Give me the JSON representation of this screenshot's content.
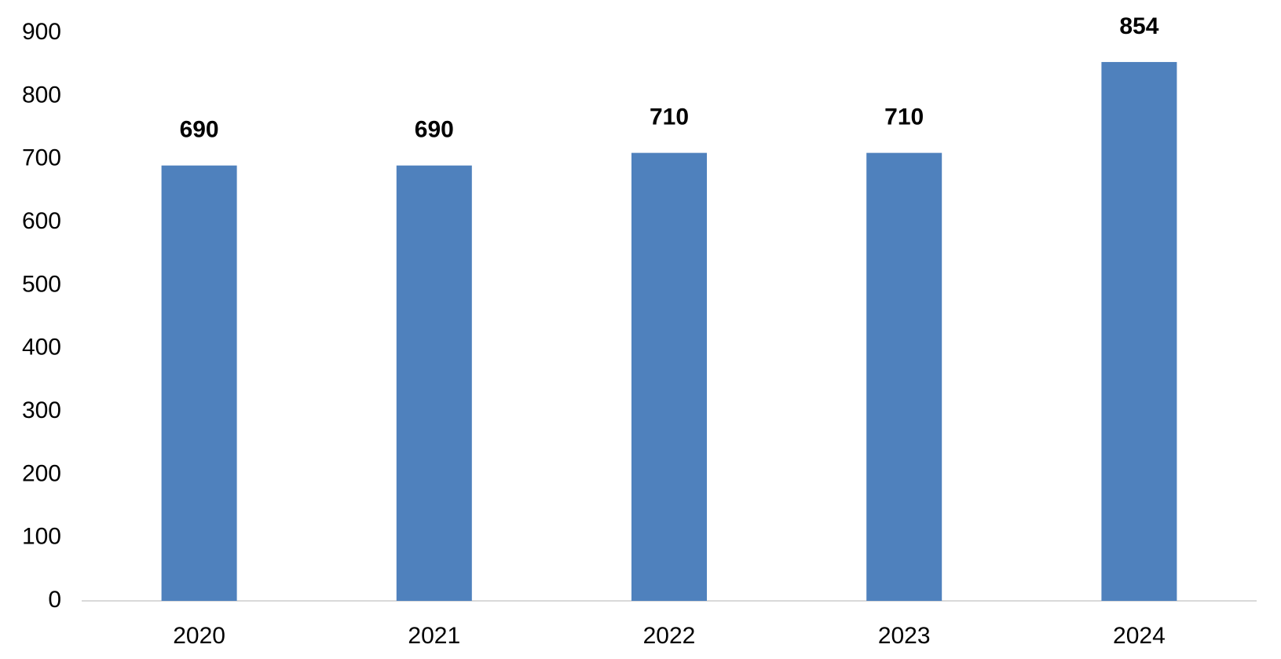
{
  "chart_data": {
    "type": "bar",
    "categories": [
      "2020",
      "2021",
      "2022",
      "2023",
      "2024"
    ],
    "values": [
      690,
      690,
      710,
      710,
      854
    ],
    "color": "#4f81bd",
    "ylim": [
      0,
      900
    ],
    "yticks": [
      0,
      100,
      200,
      300,
      400,
      500,
      600,
      700,
      800,
      900
    ],
    "grid": false,
    "data_labels": true
  }
}
